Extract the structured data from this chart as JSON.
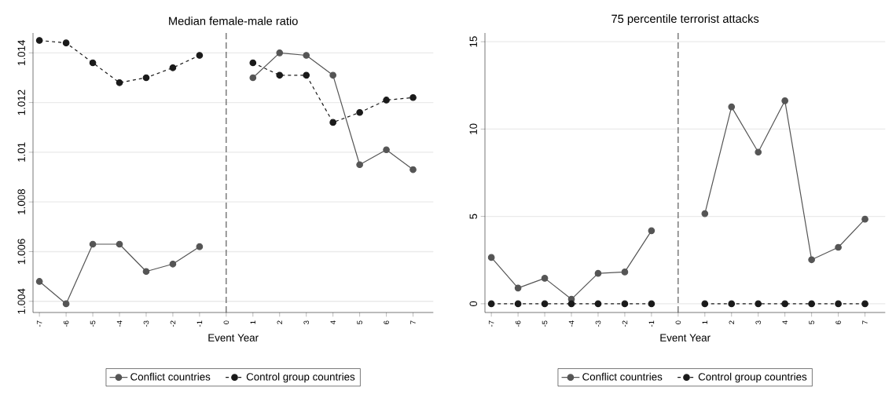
{
  "chart_data": [
    {
      "type": "line",
      "title": "Median female-male ratio",
      "xlabel": "Event Year",
      "x": [
        -7,
        -6,
        -5,
        -4,
        -3,
        -2,
        -1,
        0,
        1,
        2,
        3,
        4,
        5,
        6,
        7
      ],
      "series": [
        {
          "name": "Conflict countries",
          "color": "#555555",
          "line_style": "solid",
          "values": [
            1.0048,
            1.0039,
            1.0063,
            1.0063,
            1.0052,
            1.0055,
            1.0062,
            null,
            1.013,
            1.014,
            1.0139,
            1.0131,
            1.0095,
            1.0101,
            1.0093
          ]
        },
        {
          "name": "Control group countries",
          "color": "#1a1a1a",
          "line_style": "dashed",
          "values": [
            1.0145,
            1.0144,
            1.0136,
            1.0128,
            1.013,
            1.0134,
            1.0139,
            null,
            1.0136,
            1.0131,
            1.0131,
            1.0112,
            1.0116,
            1.0121,
            1.0122
          ]
        }
      ],
      "xlim": [
        -7.24,
        7.76
      ],
      "ylim": [
        1.00355,
        1.0148
      ],
      "xticks": [
        -7,
        -6,
        -5,
        -4,
        -3,
        -2,
        -1,
        0,
        1,
        2,
        3,
        4,
        5,
        6,
        7
      ],
      "yticks": [
        1.004,
        1.006,
        1.008,
        1.01,
        1.012,
        1.014
      ],
      "ref_lines": [
        {
          "axis": "x",
          "value": 0,
          "line_style": "dashed",
          "color": "#444444"
        }
      ],
      "grid": "y",
      "legend": "bottom",
      "marker": "circle"
    },
    {
      "type": "line",
      "title": "75 percentile terrorist attacks",
      "xlabel": "Event Year",
      "x": [
        -7,
        -6,
        -5,
        -4,
        -3,
        -2,
        -1,
        0,
        1,
        2,
        3,
        4,
        5,
        6,
        7
      ],
      "series": [
        {
          "name": "Conflict countries",
          "color": "#555555",
          "line_style": "solid",
          "values": [
            2.65,
            0.9,
            1.46,
            0.26,
            1.74,
            1.82,
            4.18,
            null,
            5.16,
            11.27,
            8.68,
            11.62,
            2.52,
            3.23,
            4.84
          ]
        },
        {
          "name": "Control group countries",
          "color": "#1a1a1a",
          "line_style": "dashed",
          "values": [
            0,
            0,
            0,
            0,
            0,
            0,
            0,
            null,
            0,
            0,
            0,
            0,
            0,
            0,
            0
          ]
        }
      ],
      "xlim": [
        -7.24,
        7.76
      ],
      "ylim": [
        -0.5,
        15.5
      ],
      "xticks": [
        -7,
        -6,
        -5,
        -4,
        -3,
        -2,
        -1,
        0,
        1,
        2,
        3,
        4,
        5,
        6,
        7
      ],
      "yticks": [
        0,
        5,
        10,
        15
      ],
      "ref_lines": [
        {
          "axis": "x",
          "value": 0,
          "line_style": "dashed",
          "color": "#444444"
        }
      ],
      "grid": "y",
      "legend": "bottom",
      "marker": "circle"
    }
  ]
}
